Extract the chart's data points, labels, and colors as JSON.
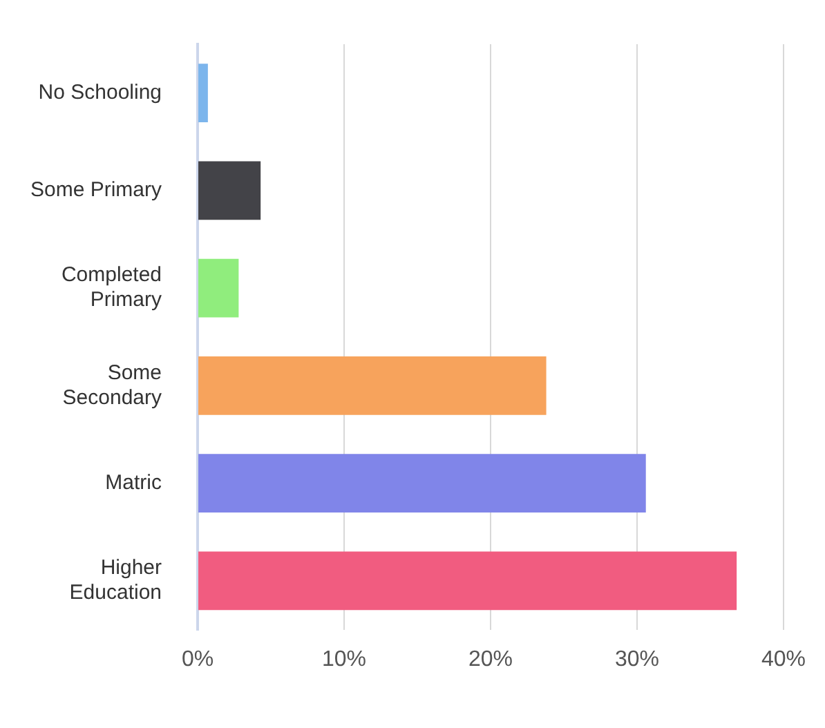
{
  "chart_data": {
    "type": "bar",
    "orientation": "horizontal",
    "categories": [
      "No Schooling",
      "Some Primary",
      "Completed Primary",
      "Some Secondary",
      "Matric",
      "Higher Education"
    ],
    "values": [
      0.7,
      4.3,
      2.8,
      23.8,
      30.6,
      36.8
    ],
    "colors": [
      "#7cb5ec",
      "#434348",
      "#90ed7d",
      "#f7a35c",
      "#8085e9",
      "#f15c80"
    ],
    "xlim": [
      0,
      40
    ],
    "xticks": [
      {
        "value": 0,
        "label": "0%"
      },
      {
        "value": 10,
        "label": "10%"
      },
      {
        "value": 20,
        "label": "20%"
      },
      {
        "value": 30,
        "label": "30%"
      },
      {
        "value": 40,
        "label": "40%"
      }
    ],
    "grid": "x",
    "legend": false
  }
}
